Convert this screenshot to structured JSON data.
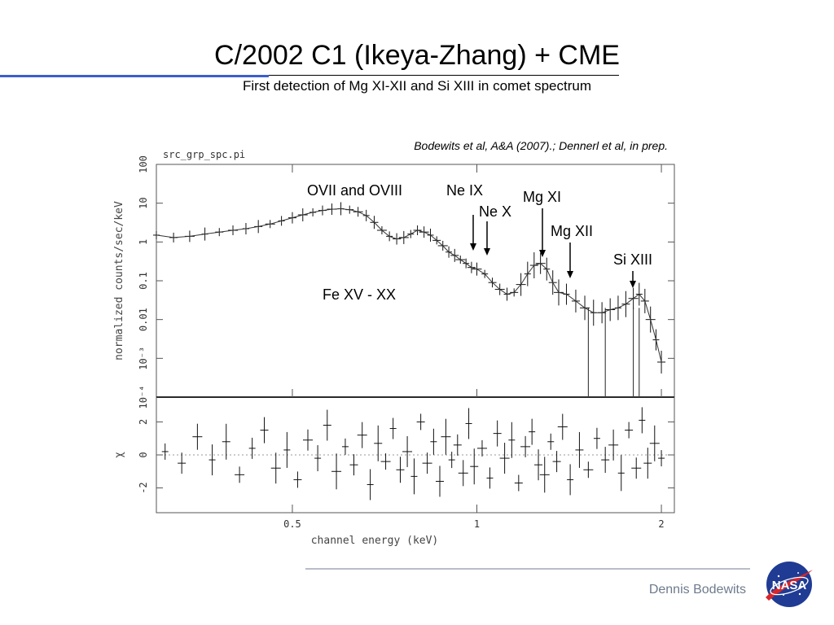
{
  "slide": {
    "title": "C/2002 C1 (Ikeya-Zhang) + CME",
    "subtitle": "First detection of Mg XI-XII and Si XIII in comet spectrum",
    "citation": "Bodewits et al, A&A (2007).; Dennerl et al, in prep.",
    "author": "Dennis Bodewits",
    "logo_text": "NASA",
    "colors": {
      "accent_rule": "#3a5fcd",
      "footer_text": "#6e7b8c",
      "footer_rule": "#b9bdc6",
      "logo_blue": "#1f3b94",
      "logo_red": "#d6262b"
    }
  },
  "chart_data": [
    {
      "type": "scatter",
      "panel": "spectrum",
      "source_label": "src_grp_spc.pi",
      "xlabel": "channel energy (keV)",
      "ylabel": "normalized counts/sec/keV",
      "xscale": "log",
      "yscale": "log",
      "xlim": [
        0.3,
        2.1
      ],
      "ylim": [
        0.0001,
        100
      ],
      "x_ticks": [
        {
          "value": 0.5,
          "label": "0.5"
        },
        {
          "value": 1,
          "label": "1"
        },
        {
          "value": 2,
          "label": "2"
        }
      ],
      "y_ticks": [
        {
          "value": 100,
          "label": "100"
        },
        {
          "value": 10,
          "label": "10"
        },
        {
          "value": 1,
          "label": "1"
        },
        {
          "value": 0.1,
          "label": "0.1"
        },
        {
          "value": 0.01,
          "label": "0.01"
        },
        {
          "value": 0.001,
          "label": "10⁻³"
        },
        {
          "value": 0.0001,
          "label": "10⁻⁴"
        }
      ],
      "x": [
        0.3,
        0.32,
        0.34,
        0.36,
        0.38,
        0.4,
        0.42,
        0.44,
        0.46,
        0.48,
        0.5,
        0.52,
        0.54,
        0.56,
        0.58,
        0.6,
        0.62,
        0.64,
        0.66,
        0.68,
        0.7,
        0.72,
        0.74,
        0.76,
        0.78,
        0.8,
        0.82,
        0.84,
        0.86,
        0.88,
        0.9,
        0.92,
        0.94,
        0.96,
        0.98,
        1.0,
        1.03,
        1.06,
        1.09,
        1.12,
        1.15,
        1.18,
        1.21,
        1.24,
        1.27,
        1.3,
        1.33,
        1.36,
        1.4,
        1.45,
        1.5,
        1.55,
        1.6,
        1.65,
        1.7,
        1.75,
        1.8,
        1.84,
        1.88,
        1.92,
        1.96,
        2.0
      ],
      "y": [
        1.5,
        1.3,
        1.4,
        1.6,
        1.8,
        2.0,
        2.2,
        2.5,
        2.9,
        3.5,
        4.2,
        5.0,
        5.8,
        6.5,
        7.0,
        7.2,
        6.8,
        6.0,
        4.8,
        3.2,
        2.0,
        1.4,
        1.2,
        1.3,
        1.6,
        2.0,
        1.8,
        1.5,
        1.1,
        0.8,
        0.55,
        0.45,
        0.35,
        0.28,
        0.22,
        0.2,
        0.15,
        0.09,
        0.06,
        0.045,
        0.05,
        0.08,
        0.15,
        0.25,
        0.28,
        0.2,
        0.09,
        0.05,
        0.045,
        0.03,
        0.02,
        0.015,
        0.015,
        0.018,
        0.02,
        0.025,
        0.035,
        0.045,
        0.03,
        0.01,
        0.003,
        0.0008
      ],
      "annotations": [
        {
          "label": "OVII and OVIII",
          "x": 0.68,
          "arrow": false
        },
        {
          "label": "Ne IX",
          "x": 0.92,
          "arrow": true
        },
        {
          "label": "Ne X",
          "x": 1.02,
          "arrow": true
        },
        {
          "label": "Mg XI",
          "x": 1.35,
          "arrow": true
        },
        {
          "label": "Mg XII",
          "x": 1.47,
          "arrow": true
        },
        {
          "label": "Si XIII",
          "x": 1.86,
          "arrow": true
        },
        {
          "label": "Fe XV - XX",
          "x": 0.68,
          "arrow": false
        }
      ]
    },
    {
      "type": "scatter",
      "panel": "residuals",
      "ylabel": "χ",
      "xscale": "log",
      "xlim": [
        0.3,
        2.1
      ],
      "ylim": [
        -3.5,
        3.5
      ],
      "y_ticks": [
        {
          "value": 2,
          "label": "2"
        },
        {
          "value": 0,
          "label": "0"
        },
        {
          "value": -2,
          "label": "-2"
        }
      ],
      "x": [
        0.31,
        0.33,
        0.35,
        0.37,
        0.39,
        0.41,
        0.43,
        0.45,
        0.47,
        0.49,
        0.51,
        0.53,
        0.55,
        0.57,
        0.59,
        0.61,
        0.63,
        0.65,
        0.67,
        0.69,
        0.71,
        0.73,
        0.75,
        0.77,
        0.79,
        0.81,
        0.83,
        0.85,
        0.87,
        0.89,
        0.91,
        0.93,
        0.95,
        0.97,
        0.99,
        1.02,
        1.05,
        1.08,
        1.11,
        1.14,
        1.17,
        1.2,
        1.23,
        1.26,
        1.29,
        1.32,
        1.35,
        1.38,
        1.42,
        1.47,
        1.52,
        1.57,
        1.62,
        1.67,
        1.72,
        1.77,
        1.82,
        1.86,
        1.9,
        1.95,
        2.0
      ],
      "y": [
        0.2,
        -0.5,
        1.1,
        -0.3,
        0.8,
        -1.2,
        0.4,
        1.5,
        -0.8,
        0.3,
        -1.5,
        0.9,
        -0.2,
        1.8,
        -1.0,
        0.5,
        -0.6,
        1.2,
        -1.8,
        0.7,
        -0.4,
        1.6,
        -0.9,
        0.2,
        -1.3,
        2.0,
        -0.5,
        0.8,
        -1.6,
        1.1,
        -0.3,
        0.6,
        -1.1,
        1.9,
        -0.7,
        0.4,
        -1.4,
        1.3,
        -0.2,
        0.9,
        -1.7,
        0.5,
        1.4,
        -0.6,
        -1.2,
        0.8,
        -0.4,
        1.7,
        -1.5,
        0.3,
        -0.9,
        1.0,
        -0.3,
        0.6,
        -1.1,
        1.5,
        -0.8,
        2.1,
        -0.5,
        0.7,
        -0.2
      ]
    }
  ]
}
